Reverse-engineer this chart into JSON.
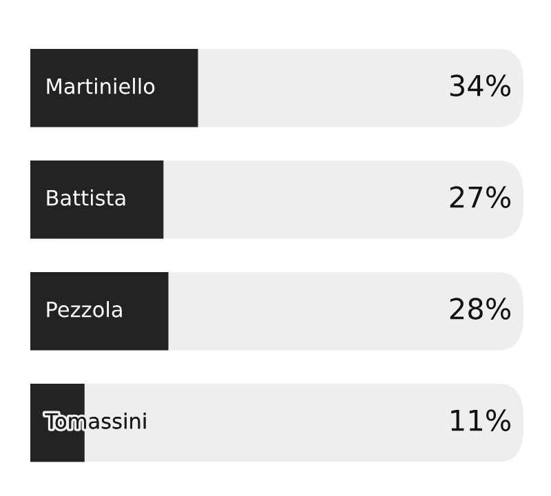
{
  "chart_data": {
    "type": "bar",
    "orientation": "horizontal",
    "categories": [
      "Martiniello",
      "Battista",
      "Pezzola",
      "Tomassini"
    ],
    "values": [
      34,
      27,
      28,
      11
    ],
    "value_labels": [
      "34%",
      "27%",
      "28%",
      "11%"
    ],
    "color": "#232323",
    "xlim": [
      0,
      100
    ],
    "tick_labels": false
  }
}
